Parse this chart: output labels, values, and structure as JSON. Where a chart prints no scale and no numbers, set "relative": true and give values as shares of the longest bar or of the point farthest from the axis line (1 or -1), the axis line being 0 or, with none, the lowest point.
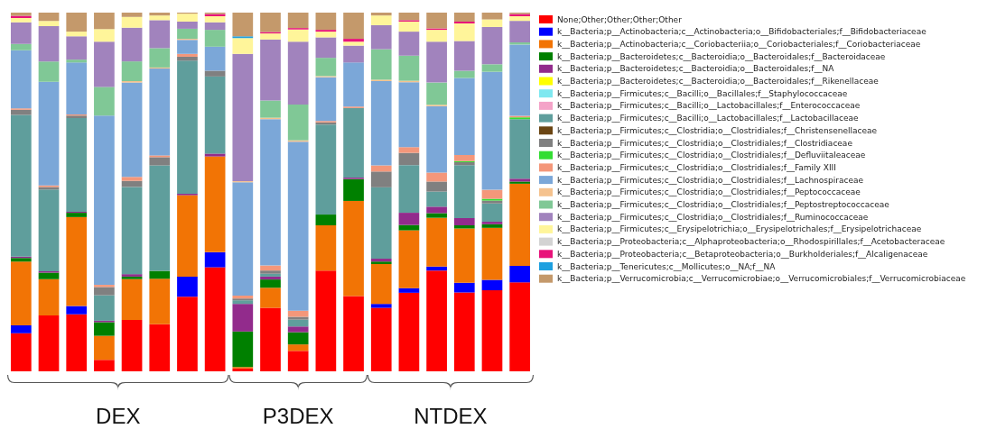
{
  "chart_data": {
    "type": "bar",
    "stacked": true,
    "relative": true,
    "legend": "right",
    "categories": [
      null,
      null,
      null,
      null,
      null,
      null,
      null,
      null,
      null,
      null,
      null,
      null,
      null,
      null,
      null,
      null,
      null,
      null,
      null
    ],
    "annotations": [
      "DEX",
      "P3DEX",
      "NTDEX"
    ],
    "series": [
      {
        "name": "None;Other;Other;Other;Other",
        "color": "#ff0000",
        "values": [
          0.106,
          0.156,
          0.159,
          0.032,
          0.143,
          0.131,
          0.208,
          0.29,
          0.008,
          0.177,
          0.057,
          0.281,
          0.21,
          0.177,
          0.219,
          0.281,
          0.22,
          0.226,
          0.248
        ]
      },
      {
        "name": "k__Bacteria;p__Actinobacteria;c__Actinobacteria;o__Bifidobacteriales;f__Bifidobacteriaceae",
        "color": "#0000ff",
        "values": [
          0.022,
          null,
          0.023,
          null,
          null,
          null,
          0.056,
          0.042,
          null,
          null,
          null,
          null,
          null,
          0.011,
          0.013,
          0.011,
          0.027,
          0.029,
          0.046
        ]
      },
      {
        "name": "k__Bacteria;p__Actinobacteria;c__Coriobacteriia;o__Coriobacteriales;f__Coriobacteriaceae",
        "color": "#f27405",
        "values": [
          0.178,
          0.101,
          0.248,
          0.067,
          0.114,
          0.127,
          0.227,
          0.267,
          0.004,
          0.056,
          0.018,
          0.126,
          0.265,
          0.111,
          0.161,
          0.136,
          0.151,
          0.145,
          0.229
        ]
      },
      {
        "name": "k__Bacteria;p__Bacteroidetes;c__Bacteroidia;o__Bacteroidales;f__Bacteroidaceae",
        "color": "#008000",
        "values": [
          0.01,
          0.018,
          0.012,
          0.038,
          0.007,
          0.022,
          null,
          null,
          0.099,
          0.023,
          0.034,
          0.03,
          0.061,
          0.007,
          0.015,
          0.013,
          0.009,
          0.01,
          0.006
        ]
      },
      {
        "name": "k__Bacteria;p__Bacteroidetes;c__Bacteroidia;o__Bacteroidales;f__NA",
        "color": "#922b8c",
        "values": [
          0.004,
          0.004,
          0.003,
          0.004,
          0.007,
          null,
          0.004,
          0.008,
          0.077,
          0.008,
          0.016,
          null,
          0.004,
          0.008,
          0.034,
          0.018,
          0.02,
          0.007,
          0.008
        ]
      },
      {
        "name": "k__Bacteria;p__Bacteroidetes;c__Bacteroidia;o__Bacteroidales;f__Rikenellaceae",
        "color": "#ffff00",
        "values": [
          null,
          null,
          null,
          null,
          null,
          null,
          null,
          null,
          null,
          null,
          null,
          null,
          null,
          null,
          null,
          null,
          null,
          null,
          null
        ]
      },
      {
        "name": "k__Bacteria;p__Firmicutes;c__Bacilli;o__Bacillales;f__Staphylococcaceae",
        "color": "#7fe8f0",
        "values": [
          null,
          null,
          null,
          null,
          null,
          null,
          null,
          null,
          null,
          null,
          null,
          null,
          null,
          null,
          null,
          null,
          null,
          null,
          null
        ]
      },
      {
        "name": "k__Bacteria;p__Firmicutes;c__Bacilli;o__Lactobacillales;f__Enterococcaceae",
        "color": "#f4a3c8",
        "values": [
          null,
          null,
          null,
          null,
          null,
          null,
          null,
          null,
          null,
          null,
          null,
          null,
          null,
          null,
          null,
          null,
          null,
          null,
          null
        ]
      },
      {
        "name": "k__Bacteria;p__Firmicutes;c__Bacilli;o__Lactobacillales;f__Lactobacillaceae",
        "color": "#5f9e9c",
        "values": [
          0.395,
          0.228,
          0.261,
          0.071,
          0.243,
          0.294,
          0.371,
          0.215,
          0.01,
          0.008,
          0.019,
          0.251,
          0.194,
          0.199,
          0.133,
          0.042,
          0.148,
          0.051,
          0.166
        ]
      },
      {
        "name": "k__Bacteria;p__Firmicutes;c__Clostridia;o__Clostridiales;f__Christensenellaceae",
        "color": "#6b4513",
        "values": [
          null,
          null,
          null,
          null,
          null,
          null,
          null,
          null,
          null,
          null,
          null,
          null,
          null,
          null,
          null,
          null,
          null,
          null,
          null
        ]
      },
      {
        "name": "k__Bacteria;p__Firmicutes;c__Clostridia;o__Clostridiales;f__Clostridiaceae",
        "color": "#808080",
        "values": [
          0.014,
          0.007,
          0.007,
          0.023,
          0.017,
          0.023,
          0.011,
          0.016,
          0.005,
          0.009,
          0.008,
          0.006,
          null,
          0.044,
          0.034,
          0.028,
          0.008,
          0.008,
          null
        ]
      },
      {
        "name": "k__Bacteria;p__Firmicutes;c__Clostridia;o__Clostridiales;f__Defluviitaleaceae",
        "color": "#33dd33",
        "values": [
          null,
          null,
          null,
          null,
          null,
          null,
          null,
          null,
          null,
          null,
          null,
          null,
          null,
          null,
          null,
          null,
          0.003,
          0.005,
          0.005
        ]
      },
      {
        "name": "k__Bacteria;p__Firmicutes;c__Clostridia;o__Clostridiales;f__Family XIII",
        "color": "#f4977a",
        "values": [
          0.004,
          0.004,
          0.003,
          0.006,
          0.011,
          0.005,
          0.008,
          null,
          0.008,
          0.014,
          0.017,
          0.004,
          0.004,
          0.017,
          0.016,
          0.025,
          0.017,
          0.025,
          0.004
        ]
      },
      {
        "name": "k__Bacteria;p__Firmicutes;c__Clostridia;o__Clostridiales;f__Lachnospiraceae",
        "color": "#7ba7d8",
        "values": [
          0.162,
          0.289,
          0.145,
          0.472,
          0.263,
          0.242,
          0.039,
          0.067,
          0.316,
          0.408,
          0.471,
          0.122,
          0.123,
          0.235,
          0.181,
          0.185,
          0.215,
          0.329,
          0.199
        ]
      },
      {
        "name": "k__Bacteria;p__Firmicutes;c__Clostridia;o__Clostridiales;f__Peptococcaceae",
        "color": "#f5c28e",
        "values": [
          null,
          null,
          null,
          null,
          0.004,
          0.003,
          0.003,
          null,
          0.003,
          0.004,
          0.004,
          0.003,
          null,
          0.004,
          0.004,
          0.004,
          null,
          null,
          null
        ]
      },
      {
        "name": "k__Bacteria;p__Firmicutes;c__Clostridia;o__Clostridiales;f__Peptostreptococcaceae",
        "color": "#80c896",
        "values": [
          0.018,
          0.057,
          0.008,
          0.08,
          0.055,
          0.054,
          0.028,
          0.047,
          null,
          0.048,
          0.1,
          0.051,
          null,
          0.085,
          0.07,
          0.062,
          0.02,
          0.021,
          0.006
        ]
      },
      {
        "name": "k__Bacteria;p__Firmicutes;c__Clostridia;o__Clostridiales;f__Ruminococcaceae",
        "color": "#a183bd",
        "values": [
          0.06,
          0.098,
          0.065,
          0.126,
          0.094,
          0.078,
          0.02,
          0.021,
          0.355,
          0.17,
          0.175,
          0.057,
          0.047,
          0.067,
          0.067,
          0.114,
          0.083,
          0.104,
          0.06
        ]
      },
      {
        "name": "k__Bacteria;p__Firmicutes;c__Erysipelotrichia;o__Erysipelotrichales;f__Erysipelotrichaceae",
        "color": "#fff59a",
        "values": [
          0.012,
          0.015,
          0.013,
          0.035,
          0.03,
          0.013,
          0.022,
          0.017,
          0.044,
          0.017,
          0.034,
          0.016,
          0.011,
          0.027,
          0.028,
          0.033,
          0.049,
          0.021,
          0.013
        ]
      },
      {
        "name": "k__Bacteria;p__Proteobacteria;c__Alphaproteobacteria;o__Rhodospirillales;f__Acetobacteraceae",
        "color": "#d3d3d3",
        "values": [
          null,
          null,
          null,
          null,
          null,
          null,
          null,
          null,
          null,
          null,
          null,
          null,
          null,
          null,
          null,
          null,
          null,
          null,
          null
        ]
      },
      {
        "name": "k__Bacteria;p__Proteobacteria;c__Betaproteobacteria;o__Burkholderiales;f__Alcaligenaceae",
        "color": "#e8137a",
        "values": [
          0.006,
          null,
          null,
          null,
          null,
          null,
          null,
          0.006,
          null,
          0.004,
          0.004,
          0.005,
          0.008,
          null,
          0.004,
          0.004,
          0.005,
          null,
          0.006
        ]
      },
      {
        "name": "k__Bacteria;p__Tenericutes;c__Mollicutes;o__NA;f__NA",
        "color": "#1ea0e0",
        "values": [
          null,
          null,
          null,
          null,
          null,
          null,
          null,
          null,
          0.005,
          null,
          null,
          null,
          null,
          null,
          null,
          null,
          null,
          null,
          null
        ]
      },
      {
        "name": "k__Bacteria;p__Verrucomicrobia;c__Verrucomicrobiae;o__Verrucomicrobiales;f__Verrucomicrobiaceae",
        "color": "#c4996b",
        "values": [
          0.009,
          0.023,
          0.053,
          0.046,
          0.012,
          0.008,
          0.003,
          0.004,
          0.066,
          0.054,
          0.043,
          0.048,
          0.073,
          0.008,
          0.021,
          0.044,
          0.025,
          0.019,
          0.004
        ]
      }
    ]
  }
}
